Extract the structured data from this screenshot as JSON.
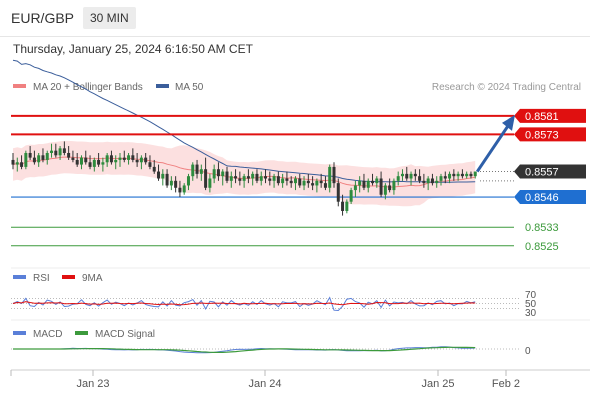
{
  "header": {
    "symbol": "EUR/GBP",
    "timeframe": "30 MIN",
    "datetime": "Thursday, January 25, 2024 6:16:50 AM CET"
  },
  "legend": {
    "ma20": "MA 20 + Bollinger Bands",
    "ma50": "MA 50",
    "credit": "Research © 2024 Trading Central"
  },
  "colors": {
    "resistance": "#e01010",
    "pivot": "#1f6fd1",
    "support": "#3c9a3c",
    "current": "#333333",
    "bullish": "#2e8b3e",
    "bearish": "#333333",
    "bollinger": "#fbd5d5",
    "ma20": "#f08080",
    "ma50": "#3b5e9b",
    "arrow": "#2e5fa8",
    "rsi": "#5a7fd8",
    "rsi_ma": "#e01010",
    "macd": "#5a7fd8",
    "macd_signal": "#3c9a3c"
  },
  "chart_data": {
    "type": "candlestick",
    "levels": {
      "resistance": [
        "0.8581",
        "0.8573"
      ],
      "current": "0.8557",
      "pivot": "0.8546",
      "support": [
        "0.8533",
        "0.8525"
      ]
    },
    "price_range": [
      0.8518,
      0.859
    ],
    "candles_ohlc": [
      [
        0.8562,
        0.8565,
        0.8558,
        0.856
      ],
      [
        0.856,
        0.8563,
        0.8557,
        0.8561
      ],
      [
        0.8561,
        0.8564,
        0.8558,
        0.8559
      ],
      [
        0.8559,
        0.8566,
        0.8558,
        0.8565
      ],
      [
        0.8565,
        0.8568,
        0.8562,
        0.8563
      ],
      [
        0.8563,
        0.8566,
        0.856,
        0.8561
      ],
      [
        0.8561,
        0.8565,
        0.8559,
        0.8564
      ],
      [
        0.8564,
        0.8567,
        0.8561,
        0.8562
      ],
      [
        0.8562,
        0.8566,
        0.856,
        0.8565
      ],
      [
        0.8565,
        0.8569,
        0.8563,
        0.8566
      ],
      [
        0.8566,
        0.8569,
        0.8563,
        0.8564
      ],
      [
        0.8564,
        0.8568,
        0.8562,
        0.8567
      ],
      [
        0.8567,
        0.857,
        0.8564,
        0.8565
      ],
      [
        0.8565,
        0.8568,
        0.8562,
        0.8563
      ],
      [
        0.8563,
        0.8566,
        0.8561,
        0.8562
      ],
      [
        0.8562,
        0.8565,
        0.8559,
        0.856
      ],
      [
        0.856,
        0.8564,
        0.8558,
        0.8563
      ],
      [
        0.8563,
        0.8566,
        0.856,
        0.8561
      ],
      [
        0.8561,
        0.8564,
        0.8558,
        0.8559
      ],
      [
        0.8559,
        0.8563,
        0.8557,
        0.8562
      ],
      [
        0.8562,
        0.8565,
        0.8559,
        0.856
      ],
      [
        0.856,
        0.8563,
        0.8557,
        0.8561
      ],
      [
        0.8561,
        0.8565,
        0.8559,
        0.8564
      ],
      [
        0.8564,
        0.8566,
        0.856,
        0.8561
      ],
      [
        0.8561,
        0.8564,
        0.8558,
        0.8562
      ],
      [
        0.8562,
        0.8565,
        0.8559,
        0.8563
      ],
      [
        0.8563,
        0.8566,
        0.8561,
        0.8562
      ],
      [
        0.8562,
        0.8565,
        0.856,
        0.8564
      ],
      [
        0.8564,
        0.8567,
        0.8561,
        0.8562
      ],
      [
        0.8562,
        0.8565,
        0.8559,
        0.8561
      ],
      [
        0.8561,
        0.8564,
        0.8558,
        0.8563
      ],
      [
        0.8563,
        0.8565,
        0.856,
        0.8561
      ],
      [
        0.8561,
        0.8564,
        0.8558,
        0.8559
      ],
      [
        0.8559,
        0.8562,
        0.8556,
        0.8557
      ],
      [
        0.8557,
        0.856,
        0.8553,
        0.8554
      ],
      [
        0.8554,
        0.8558,
        0.8551,
        0.8556
      ],
      [
        0.8556,
        0.8558,
        0.855,
        0.8551
      ],
      [
        0.8551,
        0.8555,
        0.8549,
        0.8553
      ],
      [
        0.8553,
        0.8555,
        0.8548,
        0.855
      ],
      [
        0.855,
        0.8553,
        0.8546,
        0.8548
      ],
      [
        0.8548,
        0.8552,
        0.8547,
        0.8551
      ],
      [
        0.8551,
        0.8556,
        0.8549,
        0.8555
      ],
      [
        0.8555,
        0.8561,
        0.8553,
        0.856
      ],
      [
        0.856,
        0.8562,
        0.8554,
        0.8556
      ],
      [
        0.8556,
        0.856,
        0.8553,
        0.8558
      ],
      [
        0.8558,
        0.8563,
        0.8549,
        0.855
      ],
      [
        0.855,
        0.8556,
        0.8548,
        0.8554
      ],
      [
        0.8554,
        0.856,
        0.8552,
        0.8558
      ],
      [
        0.8558,
        0.8561,
        0.8553,
        0.8555
      ],
      [
        0.8555,
        0.8558,
        0.8551,
        0.8557
      ],
      [
        0.8557,
        0.8559,
        0.8552,
        0.8553
      ],
      [
        0.8553,
        0.8557,
        0.855,
        0.8555
      ],
      [
        0.8555,
        0.8558,
        0.8552,
        0.8554
      ],
      [
        0.8554,
        0.8557,
        0.8551,
        0.8553
      ],
      [
        0.8553,
        0.8556,
        0.855,
        0.8555
      ],
      [
        0.8555,
        0.8558,
        0.8552,
        0.8554
      ],
      [
        0.8554,
        0.8557,
        0.8551,
        0.8556
      ],
      [
        0.8556,
        0.8558,
        0.8552,
        0.8553
      ],
      [
        0.8553,
        0.8557,
        0.8551,
        0.8555
      ],
      [
        0.8555,
        0.8558,
        0.8552,
        0.8554
      ],
      [
        0.8554,
        0.8557,
        0.8551,
        0.8553
      ],
      [
        0.8553,
        0.8556,
        0.855,
        0.8555
      ],
      [
        0.8555,
        0.8557,
        0.8551,
        0.8552
      ],
      [
        0.8552,
        0.8556,
        0.855,
        0.8554
      ],
      [
        0.8554,
        0.8557,
        0.8551,
        0.8553
      ],
      [
        0.8553,
        0.8555,
        0.855,
        0.8552
      ],
      [
        0.8552,
        0.8555,
        0.8549,
        0.8554
      ],
      [
        0.8554,
        0.8556,
        0.855,
        0.8551
      ],
      [
        0.8551,
        0.8555,
        0.8549,
        0.8553
      ],
      [
        0.8553,
        0.8556,
        0.855,
        0.8552
      ],
      [
        0.8552,
        0.8555,
        0.8549,
        0.8551
      ],
      [
        0.8551,
        0.8554,
        0.8548,
        0.8553
      ],
      [
        0.8553,
        0.8556,
        0.855,
        0.8552
      ],
      [
        0.8552,
        0.8555,
        0.8549,
        0.855
      ],
      [
        0.855,
        0.856,
        0.8548,
        0.8559
      ],
      [
        0.8559,
        0.8561,
        0.855,
        0.8552
      ],
      [
        0.8552,
        0.8554,
        0.8542,
        0.8544
      ],
      [
        0.8544,
        0.8547,
        0.8538,
        0.854
      ],
      [
        0.854,
        0.8545,
        0.8539,
        0.8544
      ],
      [
        0.8544,
        0.855,
        0.8543,
        0.8549
      ],
      [
        0.8549,
        0.8553,
        0.8546,
        0.8551
      ],
      [
        0.8551,
        0.8555,
        0.8548,
        0.8553
      ],
      [
        0.8553,
        0.8556,
        0.8549,
        0.855
      ],
      [
        0.855,
        0.8554,
        0.8548,
        0.8553
      ],
      [
        0.8553,
        0.8556,
        0.8551,
        0.8552
      ],
      [
        0.8552,
        0.8555,
        0.855,
        0.8554
      ],
      [
        0.8554,
        0.8557,
        0.8546,
        0.8547
      ],
      [
        0.8547,
        0.8552,
        0.8545,
        0.8551
      ],
      [
        0.8551,
        0.8554,
        0.8548,
        0.8549
      ],
      [
        0.8549,
        0.8554,
        0.8547,
        0.8553
      ],
      [
        0.8553,
        0.8557,
        0.8551,
        0.8555
      ],
      [
        0.8555,
        0.8558,
        0.8553,
        0.8556
      ],
      [
        0.8556,
        0.8559,
        0.8553,
        0.8554
      ],
      [
        0.8554,
        0.8557,
        0.8551,
        0.8556
      ],
      [
        0.8556,
        0.8558,
        0.8553,
        0.8555
      ],
      [
        0.8555,
        0.8558,
        0.8552,
        0.8553
      ],
      [
        0.8553,
        0.8556,
        0.855,
        0.8552
      ],
      [
        0.8552,
        0.8555,
        0.8549,
        0.8554
      ],
      [
        0.8554,
        0.8556,
        0.8551,
        0.8552
      ],
      [
        0.8552,
        0.8555,
        0.855,
        0.8553
      ],
      [
        0.8553,
        0.8556,
        0.8551,
        0.8555
      ],
      [
        0.8555,
        0.8557,
        0.8552,
        0.8554
      ],
      [
        0.8554,
        0.8557,
        0.8552,
        0.8556
      ],
      [
        0.8556,
        0.8558,
        0.8553,
        0.8555
      ],
      [
        0.8555,
        0.8557,
        0.8553,
        0.8556
      ],
      [
        0.8556,
        0.8558,
        0.8554,
        0.8555
      ],
      [
        0.8555,
        0.8557,
        0.8554,
        0.8556
      ],
      [
        0.8556,
        0.8557,
        0.8554,
        0.8555
      ],
      [
        0.8555,
        0.8557,
        0.8554,
        0.8557
      ]
    ],
    "forecast_arrow": {
      "from_price": 0.8557,
      "to_price": 0.8581
    },
    "x_ticks": [
      "Jan 23",
      "Jan 24",
      "Jan 25",
      "Feb 2"
    ],
    "rsi": {
      "labels": [
        "RSI",
        "9MA"
      ],
      "levels": [
        "70",
        "50",
        "30"
      ],
      "range": [
        0,
        100
      ]
    },
    "macd": {
      "labels": [
        "MACD",
        "MACD Signal"
      ],
      "zero_label": "0"
    }
  }
}
